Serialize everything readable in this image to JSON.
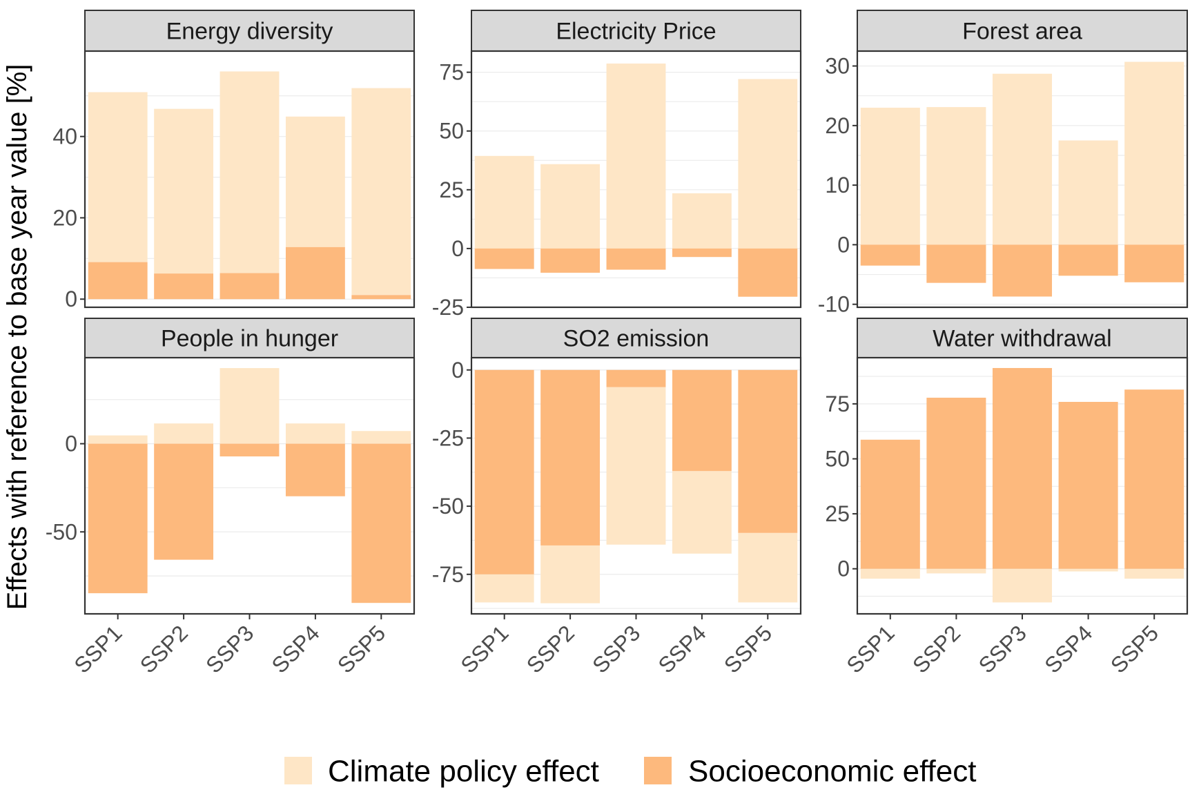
{
  "chart_data": {
    "type": "bar",
    "subtype": "faceted-stacked-bar",
    "ylabel": "Effects with reference  to base year value [%]",
    "xlabel": "",
    "categories": [
      "SSP1",
      "SSP2",
      "SSP3",
      "SSP4",
      "SSP5"
    ],
    "colors": {
      "climate": "#fee6c6",
      "socio": "#fdb97d",
      "strip": "#d9d9d9",
      "border": "#333333"
    },
    "legend": {
      "placement": "bottom",
      "items": [
        {
          "key": "climate",
          "label": "Climate policy effect"
        },
        {
          "key": "socio",
          "label": "Socioeconomic effect"
        }
      ]
    },
    "panels": [
      {
        "title": "Energy diversity",
        "ylim": [
          -2,
          61
        ],
        "yticks": [
          0,
          20,
          40
        ],
        "ytick_labels": [
          "0",
          "20",
          "40"
        ],
        "minor_grid": [
          10,
          30,
          50
        ],
        "socio": [
          9.1,
          6.3,
          6.4,
          12.8,
          1.0
        ],
        "total": [
          50.9,
          46.8,
          56.0,
          44.9,
          51.9
        ]
      },
      {
        "title": "Electricity Price",
        "ylim": [
          -25,
          84
        ],
        "yticks": [
          -25,
          0,
          25,
          50,
          75
        ],
        "ytick_labels": [
          "-25",
          "0",
          "25",
          "50",
          "75"
        ],
        "minor_grid": [
          -12.5,
          12.5,
          37.5,
          62.5
        ],
        "socio": [
          -8.7,
          -10.3,
          -9.0,
          -3.6,
          -20.5
        ],
        "total": [
          39.4,
          35.9,
          78.7,
          23.5,
          72.1
        ]
      },
      {
        "title": "Forest area",
        "ylim": [
          -10.5,
          32.5
        ],
        "yticks": [
          -10,
          0,
          10,
          20,
          30
        ],
        "ytick_labels": [
          "-10",
          "0",
          "10",
          "20",
          "30"
        ],
        "minor_grid": [
          -5,
          5,
          15,
          25
        ],
        "socio": [
          -3.5,
          -6.4,
          -8.7,
          -5.2,
          -6.3
        ],
        "total": [
          23.0,
          23.1,
          28.7,
          17.5,
          30.7
        ]
      },
      {
        "title": "People in hunger",
        "ylim": [
          -96.5,
          48.8
        ],
        "yticks": [
          -50,
          0
        ],
        "ytick_labels": [
          "-50",
          "0"
        ],
        "minor_grid": [
          -75,
          -25,
          25
        ],
        "socio": [
          -84.8,
          -65.8,
          -7.2,
          -29.8,
          -90.3
        ],
        "climate": [
          4.7,
          11.5,
          42.9,
          11.5,
          7.2
        ]
      },
      {
        "title": "SO2 emission",
        "ylim": [
          -89.5,
          4.5
        ],
        "yticks": [
          -75,
          -50,
          -25,
          0
        ],
        "ytick_labels": [
          "-75",
          "-50",
          "-25",
          "0"
        ],
        "minor_grid": [
          -87.5,
          -62.5,
          -37.5,
          -12.5
        ],
        "socio": [
          -75.0,
          -64.4,
          -6.3,
          -37.1,
          -59.8
        ],
        "total": [
          -85.3,
          -85.6,
          -64.1,
          -67.4,
          -85.3
        ]
      },
      {
        "title": "Water withdrawal",
        "ylim": [
          -20.5,
          96
        ],
        "yticks": [
          0,
          25,
          50,
          75
        ],
        "ytick_labels": [
          "0",
          "25",
          "50",
          "75"
        ],
        "minor_grid": [
          -12.5,
          12.5,
          37.5,
          62.5,
          87.5
        ],
        "socio": [
          58.7,
          77.8,
          91.3,
          75.9,
          81.5
        ],
        "climate": [
          -4.5,
          -2.1,
          -15.3,
          -1.2,
          -4.5
        ]
      }
    ]
  }
}
